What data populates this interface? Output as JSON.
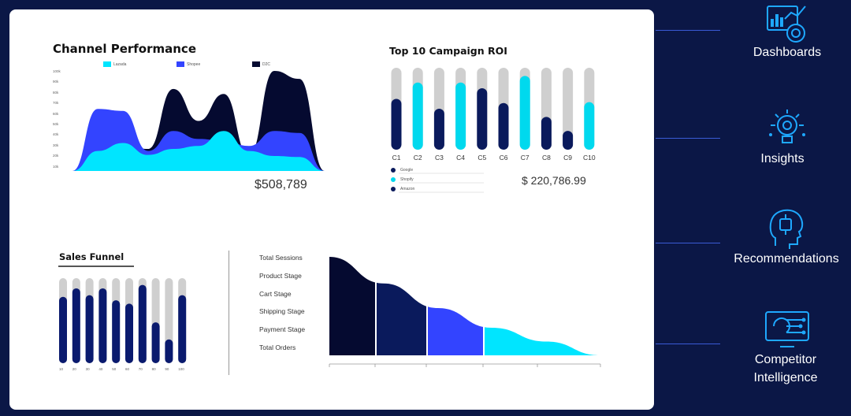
{
  "channel": {
    "title": "Channel Performance",
    "legend": [
      {
        "name": "Lazada",
        "color": "#00e5ff"
      },
      {
        "name": "Shopee",
        "color": "#3344ff"
      },
      {
        "name": "D2C",
        "color": "#050a30"
      }
    ],
    "total": "$508,789"
  },
  "campaign": {
    "title": "Top 10 Campaign ROI",
    "legend": [
      "Google",
      "Shopify",
      "Amazon"
    ],
    "total": "$ 220,786.99"
  },
  "funnel": {
    "title": "Sales Funnel",
    "stages": [
      "Total Sessions",
      "Product Stage",
      "Cart Stage",
      "Shipping Stage",
      "Payment  Stage",
      "Total Orders"
    ]
  },
  "sidebar": {
    "items": [
      {
        "label": "Dashboards",
        "icon": "dashboard-icon"
      },
      {
        "label": "Insights",
        "icon": "lightbulb-icon"
      },
      {
        "label": "Recommendations",
        "icon": "ai-head-icon"
      },
      {
        "label": "Competitor",
        "label2": "Intelligence",
        "icon": "circuit-monitor-icon"
      }
    ]
  },
  "chart_data": [
    {
      "type": "area",
      "title": "Channel Performance",
      "y_ticks": [
        "100k",
        "90k",
        "80k",
        "70k",
        "60k",
        "50k",
        "40k",
        "30k",
        "20k",
        "10k"
      ],
      "ylim": [
        0,
        100000
      ],
      "x": [
        0,
        1,
        2,
        3,
        4,
        5,
        6,
        7,
        8,
        9,
        10
      ],
      "series": [
        {
          "name": "D2C",
          "color": "#050a30",
          "values": [
            0,
            10000,
            27000,
            22000,
            82000,
            50000,
            77000,
            15000,
            100000,
            92000,
            0
          ]
        },
        {
          "name": "Shopee",
          "color": "#3344ff",
          "values": [
            0,
            62000,
            60000,
            20000,
            40000,
            32000,
            30000,
            25000,
            40000,
            38000,
            0
          ]
        },
        {
          "name": "Lazada",
          "color": "#00e5ff",
          "values": [
            0,
            20000,
            28000,
            16000,
            22000,
            25000,
            40000,
            20000,
            15000,
            14000,
            0
          ]
        }
      ],
      "legend_position": "top"
    },
    {
      "type": "bar",
      "title": "Top 10 Campaign ROI",
      "categories": [
        "C1",
        "C2",
        "C3",
        "C4",
        "C5",
        "C6",
        "C7",
        "C8",
        "C9",
        "C10"
      ],
      "values": [
        62,
        82,
        50,
        82,
        75,
        57,
        90,
        40,
        23,
        58
      ],
      "colors": [
        "#0a1a5c",
        "#00d9ee",
        "#0a1a5c",
        "#00d9ee",
        "#0a1a5c",
        "#0a1a5c",
        "#00d9ee",
        "#0a1a5c",
        "#0a1a5c",
        "#00d9ee"
      ],
      "ylim": [
        0,
        100
      ],
      "legend": [
        "Google",
        "Shopify",
        "Amazon"
      ]
    },
    {
      "type": "bar",
      "title": "Sales Funnel",
      "categories": [
        "10",
        "20",
        "30",
        "40",
        "50",
        "60",
        "70",
        "80",
        "90",
        "100"
      ],
      "values": [
        78,
        88,
        80,
        88,
        74,
        70,
        92,
        48,
        28,
        80
      ],
      "ylim": [
        0,
        100
      ]
    },
    {
      "type": "area",
      "title": "Sales Funnel",
      "categories": [
        "Total Sessions",
        "Product Stage",
        "Cart Stage",
        "Shipping Stage",
        "Payment  Stage",
        "Total Orders"
      ],
      "values": [
        100,
        73,
        48,
        28,
        14,
        0
      ],
      "segment_colors": [
        "#050a30",
        "#0a1a5c",
        "#3344ff",
        "#00e5ff"
      ]
    }
  ]
}
